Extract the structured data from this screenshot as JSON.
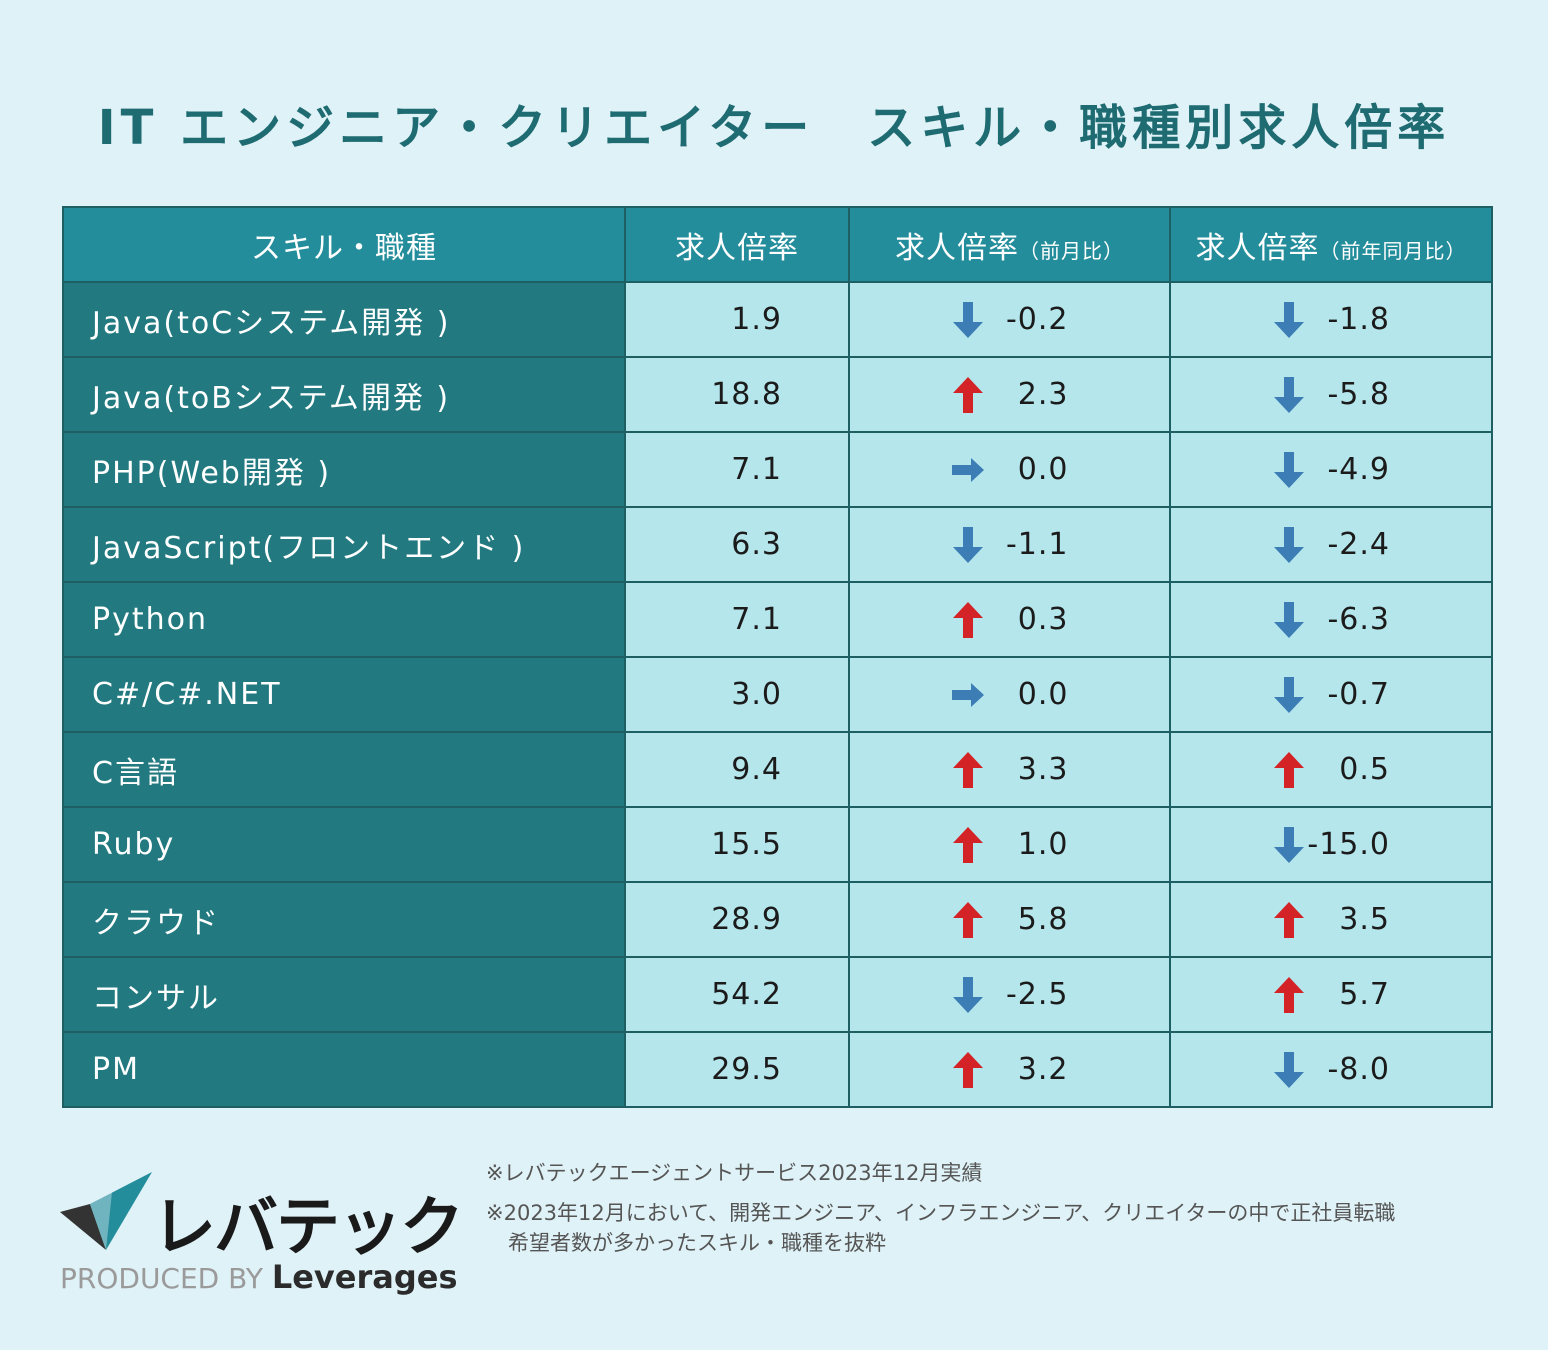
{
  "title": "IT エンジニア・クリエイター　スキル・職種別求人倍率",
  "colors": {
    "background": "#dff2f7",
    "title": "#1f6b72",
    "header_bg": "#238d9b",
    "skill_bg": "#227a80",
    "cell_bg": "#b4e6ec",
    "arrow_down": "#3b7db4",
    "arrow_up": "#d42326",
    "arrow_flat": "#3b7db4"
  },
  "chart_data": {
    "type": "table",
    "columns": [
      {
        "label": "スキル・職種",
        "note": ""
      },
      {
        "label": "求人倍率",
        "note": ""
      },
      {
        "label": "求人倍率",
        "note": "（前月比）"
      },
      {
        "label": "求人倍率",
        "note": "（前年同月比）"
      }
    ],
    "rows": [
      {
        "skill": "Java(toCシステム開発 )",
        "rate": "1.9",
        "mom": "-0.2",
        "mom_dir": "down",
        "yoy": "-1.8",
        "yoy_dir": "down"
      },
      {
        "skill": "Java(toBシステム開発 )",
        "rate": "18.8",
        "mom": "2.3",
        "mom_dir": "up",
        "yoy": "-5.8",
        "yoy_dir": "down"
      },
      {
        "skill": "PHP(Web開発 )",
        "rate": "7.1",
        "mom": "0.0",
        "mom_dir": "flat",
        "yoy": "-4.9",
        "yoy_dir": "down"
      },
      {
        "skill": "JavaScript(フロントエンド )",
        "rate": "6.3",
        "mom": "-1.1",
        "mom_dir": "down",
        "yoy": "-2.4",
        "yoy_dir": "down"
      },
      {
        "skill": "Python",
        "rate": "7.1",
        "mom": "0.3",
        "mom_dir": "up",
        "yoy": "-6.3",
        "yoy_dir": "down"
      },
      {
        "skill": "C#/C#.NET",
        "rate": "3.0",
        "mom": "0.0",
        "mom_dir": "flat",
        "yoy": "-0.7",
        "yoy_dir": "down"
      },
      {
        "skill": "C言語",
        "rate": "9.4",
        "mom": "3.3",
        "mom_dir": "up",
        "yoy": "0.5",
        "yoy_dir": "up"
      },
      {
        "skill": "Ruby",
        "rate": "15.5",
        "mom": "1.0",
        "mom_dir": "up",
        "yoy": "-15.0",
        "yoy_dir": "down"
      },
      {
        "skill": "クラウド",
        "rate": "28.9",
        "mom": "5.8",
        "mom_dir": "up",
        "yoy": "3.5",
        "yoy_dir": "up"
      },
      {
        "skill": "コンサル",
        "rate": "54.2",
        "mom": "-2.5",
        "mom_dir": "down",
        "yoy": "5.7",
        "yoy_dir": "up"
      },
      {
        "skill": "PM",
        "rate": "29.5",
        "mom": "3.2",
        "mom_dir": "up",
        "yoy": "-8.0",
        "yoy_dir": "down"
      }
    ]
  },
  "brand": {
    "name": "レバテック",
    "produced_by": "PRODUCED BY",
    "company": "Leverages"
  },
  "notes": {
    "line1": "※レバテックエージェントサービス2023年12月実績",
    "line2": "※2023年12月において、開発エンジニア、インフラエンジニア、クリエイターの中で正社員転職",
    "line3": "希望者数が多かったスキル・職種を抜粋"
  }
}
